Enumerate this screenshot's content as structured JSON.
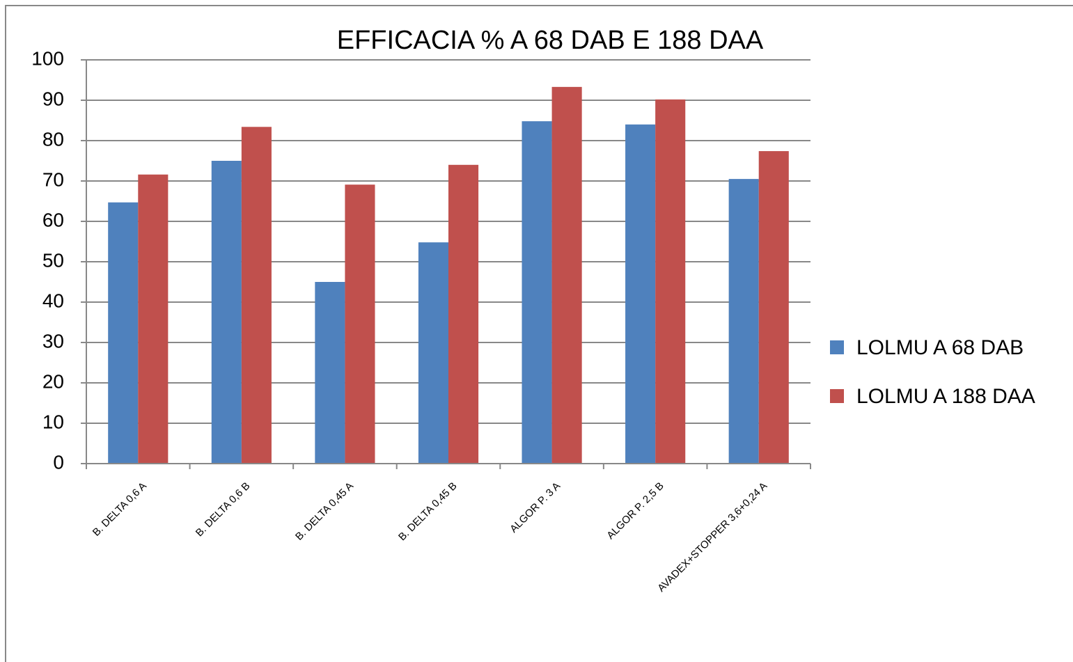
{
  "chart_data": {
    "type": "bar",
    "title": "EFFICACIA % A 68 DAB E 188 DAA",
    "categories": [
      "B. DELTA 0,6 A",
      "B. DELTA 0,6 B",
      "B. DELTA 0,45 A",
      "B. DELTA 0,45 B",
      "ALGOR P. 3 A",
      "ALGOR P. 2,5  B",
      "AVADEX+STOPPER 3,6+0,24 A"
    ],
    "series": [
      {
        "name": "LOLMU A 68 DAB",
        "color": "#4f81bd",
        "values": [
          64.7,
          75,
          45,
          54.8,
          84.8,
          84,
          70.5
        ]
      },
      {
        "name": "LOLMU A 188 DAA",
        "color": "#c0504d",
        "values": [
          71.6,
          83.4,
          69.1,
          74,
          93.3,
          90.2,
          77.4
        ]
      }
    ],
    "ylim": [
      0,
      100
    ],
    "yticks": [
      0,
      10,
      20,
      30,
      40,
      50,
      60,
      70,
      80,
      90,
      100
    ],
    "grid": true,
    "legend": "right"
  }
}
